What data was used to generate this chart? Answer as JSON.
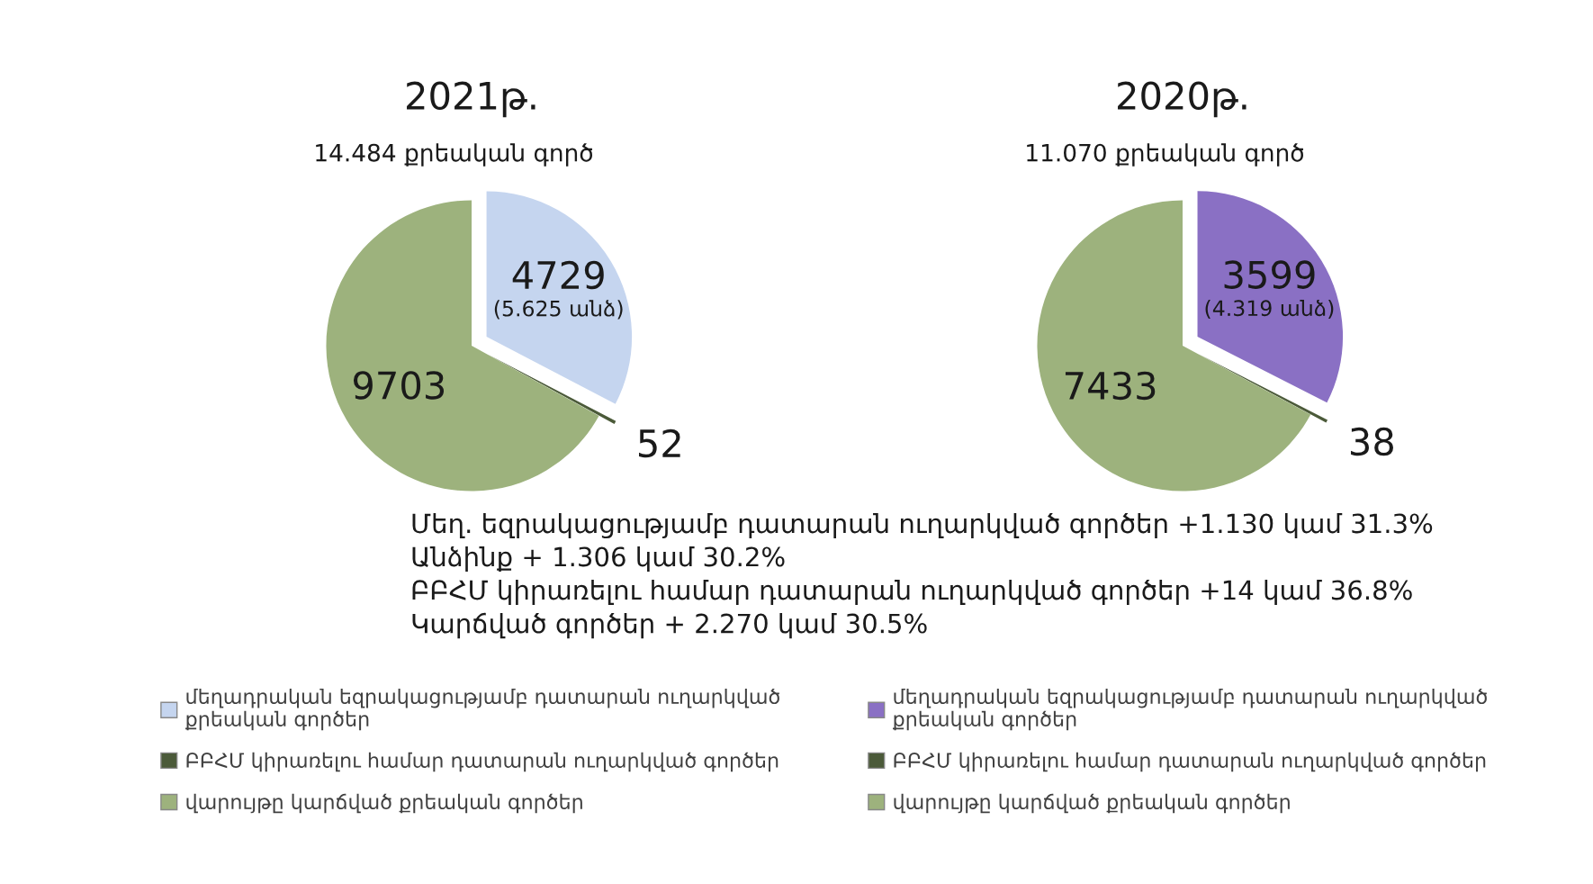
{
  "chart_data": [
    {
      "type": "pie",
      "title": "2021թ.",
      "subtitle": "14.484 քրեական գործ",
      "categories": [
        "մեղադրական եզրակացությամբ դատարան ուղարկված քրեական գործեր",
        "ԲԲՀՄ կիրառելու համար դատարան ուղարկված գործեր",
        "վարույթը կարճված քրեական գործեր"
      ],
      "values": [
        4729,
        52,
        9703
      ],
      "colors": [
        "#c5d5ef",
        "#4b5a39",
        "#9db27d"
      ],
      "value_labels": [
        "4729\n(5.625 անձ)",
        "52",
        "9703"
      ],
      "legend": "bottom",
      "annotations": [
        "Մեղ. եզրակացությամբ դատարան ուղարկված գործեր +1.130 կամ 31.3%",
        "Անձինք + 1.306 կամ 30.2%",
        "ԲԲՀՄ կիրառելու համար դատարան ուղարկված գործեր +14 կամ 36.8%",
        "Կարճված գործեր + 2.270 կամ 30.5%"
      ]
    },
    {
      "type": "pie",
      "title": "2020թ.",
      "subtitle": "11.070 քրեական գործ",
      "categories": [
        "մեղադրական եզրակացությամբ դատարան ուղարկված քրեական գործեր",
        "ԲԲՀՄ կիրառելու համար դատարան ուղարկված գործեր",
        "վարույթը կարճված քրեական գործեր"
      ],
      "values": [
        3599,
        38,
        7433
      ],
      "colors": [
        "#8a70c4",
        "#4b5a39",
        "#9db27d"
      ],
      "value_labels": [
        "3599\n(4.319 անձ)",
        "38",
        "7433"
      ],
      "legend": "bottom"
    }
  ]
}
